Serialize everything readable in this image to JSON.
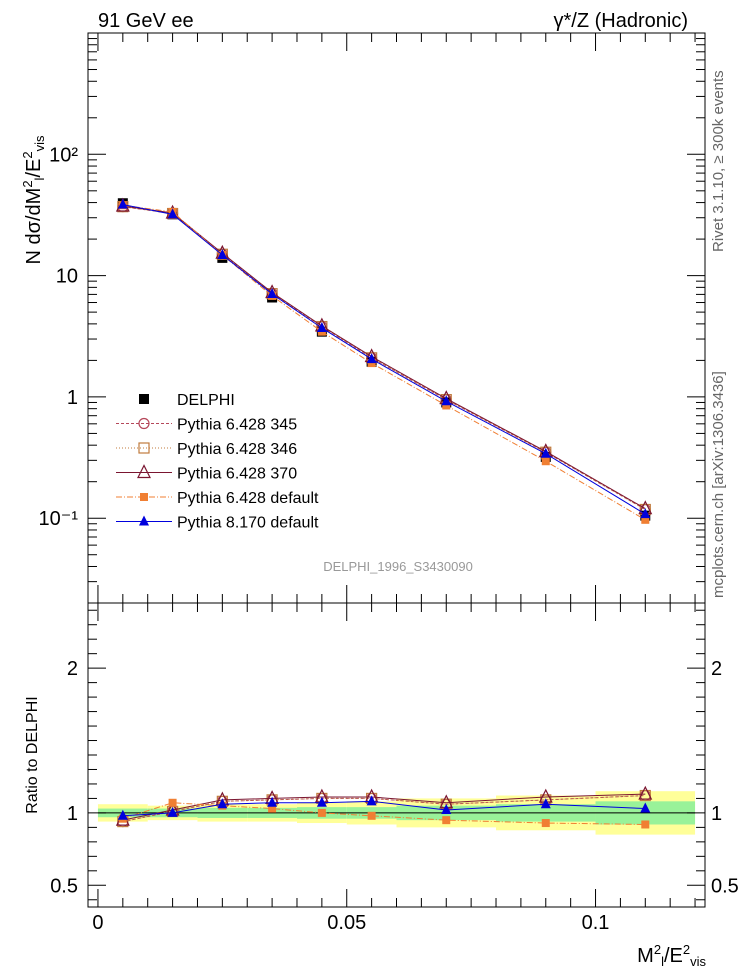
{
  "header": {
    "left": "91 GeV ee",
    "right": "γ*/Z (Hadronic)"
  },
  "side_labels": {
    "rivet": "Rivet 3.1.10, ≥ 300k events",
    "source": "mcplots.cern.ch [arXiv:1306.3436]"
  },
  "analysis_id": "DELPHI_1996_S3430090",
  "colors": {
    "delphi": "#000000",
    "p345": "#b5475a",
    "p346": "#c07b3e",
    "p370": "#7a1530",
    "pdefault": "#f07f33",
    "p8": "#0000dd",
    "band_inner": "#99f299",
    "band_outer": "#ffff99"
  },
  "chart_data": [
    {
      "type": "line",
      "panel": "main",
      "ylabel": "N dσ/dM²l/E²vis",
      "yscale": "log",
      "ylim": [
        0.02,
        1000
      ],
      "xlim": [
        -0.002,
        0.122
      ],
      "ytick_labels": [
        "10⁻¹",
        "1",
        "10",
        "10²"
      ],
      "legend_position": "left-middle",
      "x": [
        0.005,
        0.015,
        0.025,
        0.035,
        0.045,
        0.055,
        0.07,
        0.09,
        0.11
      ],
      "series": [
        {
          "name": "DELPHI",
          "style": "data",
          "values": [
            39.5,
            32.0,
            14.0,
            6.6,
            3.45,
            1.95,
            0.9,
            0.32,
            0.105
          ]
        },
        {
          "name": "Pythia 6.428 345",
          "style": "open-circle",
          "values": [
            37.0,
            32.5,
            15.0,
            7.1,
            3.8,
            2.1,
            0.95,
            0.35,
            0.118
          ]
        },
        {
          "name": "Pythia 6.428 346",
          "style": "open-square",
          "values": [
            37.0,
            32.5,
            15.0,
            7.1,
            3.8,
            2.1,
            0.95,
            0.35,
            0.118
          ]
        },
        {
          "name": "Pythia 6.428 370",
          "style": "open-triangle",
          "values": [
            37.5,
            32.8,
            15.3,
            7.25,
            3.85,
            2.15,
            0.97,
            0.355,
            0.12
          ]
        },
        {
          "name": "Pythia 6.428 default",
          "style": "filled-square",
          "values": [
            38.0,
            33.5,
            14.8,
            6.8,
            3.45,
            1.9,
            0.85,
            0.295,
            0.097
          ]
        },
        {
          "name": "Pythia 8.170 default",
          "style": "filled-triangle",
          "values": [
            38.5,
            32.0,
            14.8,
            7.05,
            3.7,
            2.05,
            0.92,
            0.34,
            0.108
          ]
        }
      ]
    },
    {
      "type": "line",
      "panel": "ratio",
      "xlabel": "M²l/E²vis",
      "ylabel": "Ratio to DELPHI",
      "ylim": [
        0.35,
        2.45
      ],
      "xlim": [
        -0.002,
        0.122
      ],
      "ytick_labels": [
        "0.5",
        "1",
        "2"
      ],
      "xtick_labels": [
        "0",
        "0.05",
        "0.1"
      ],
      "x": [
        0.005,
        0.015,
        0.025,
        0.035,
        0.045,
        0.055,
        0.07,
        0.09,
        0.11
      ],
      "bins": [
        [
          0.0,
          0.01
        ],
        [
          0.01,
          0.02
        ],
        [
          0.02,
          0.03
        ],
        [
          0.03,
          0.04
        ],
        [
          0.04,
          0.05
        ],
        [
          0.05,
          0.06
        ],
        [
          0.06,
          0.08
        ],
        [
          0.08,
          0.1
        ],
        [
          0.1,
          0.12
        ]
      ],
      "band_inner": [
        0.03,
        0.03,
        0.035,
        0.035,
        0.04,
        0.04,
        0.05,
        0.06,
        0.08
      ],
      "band_outer": [
        0.06,
        0.05,
        0.06,
        0.06,
        0.07,
        0.08,
        0.1,
        0.12,
        0.15
      ],
      "series": [
        {
          "name": "Pythia 6.428 345",
          "values": [
            0.94,
            1.01,
            1.08,
            1.09,
            1.1,
            1.1,
            1.06,
            1.09,
            1.12
          ]
        },
        {
          "name": "Pythia 6.428 346",
          "values": [
            0.94,
            1.01,
            1.08,
            1.09,
            1.1,
            1.1,
            1.06,
            1.09,
            1.12
          ]
        },
        {
          "name": "Pythia 6.428 370",
          "values": [
            0.95,
            1.02,
            1.09,
            1.1,
            1.11,
            1.11,
            1.07,
            1.11,
            1.13
          ]
        },
        {
          "name": "Pythia 6.428 default",
          "values": [
            0.96,
            1.07,
            1.05,
            1.03,
            1.0,
            0.98,
            0.95,
            0.93,
            0.92
          ]
        },
        {
          "name": "Pythia 8.170 default",
          "values": [
            0.98,
            1.0,
            1.06,
            1.07,
            1.07,
            1.08,
            1.02,
            1.06,
            1.03
          ]
        }
      ]
    }
  ]
}
